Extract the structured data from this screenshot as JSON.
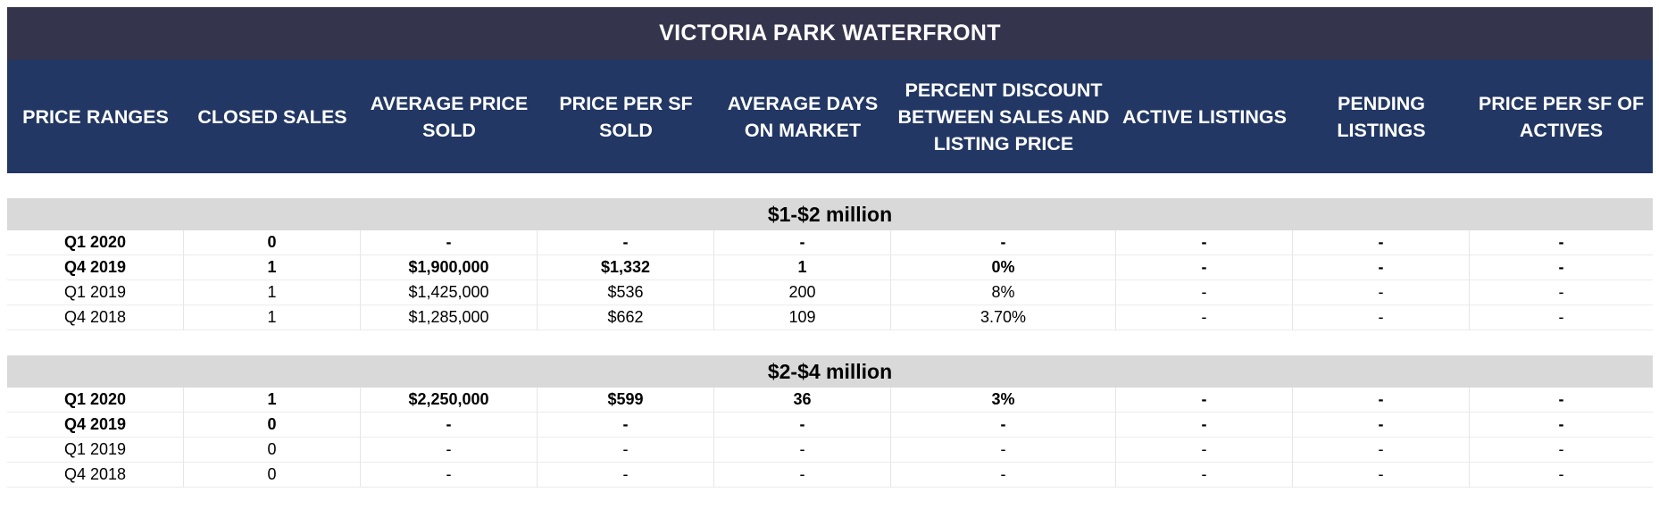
{
  "title": "VICTORIA PARK WATERFRONT",
  "columns": [
    "PRICE RANGES",
    "CLOSED SALES",
    "AVERAGE PRICE SOLD",
    "PRICE PER SF SOLD",
    "AVERAGE DAYS ON MARKET",
    "PERCENT DISCOUNT BETWEEN SALES AND LISTING PRICE",
    "ACTIVE LISTINGS",
    "PENDING LISTINGS",
    "PRICE PER SF OF ACTIVES"
  ],
  "colors": {
    "title_bg": "#35344d",
    "header_bg": "#223763",
    "section_bg": "#d9d9d9"
  },
  "sections": [
    {
      "label": "$1-$2 million",
      "rows": [
        {
          "bold": true,
          "cells": [
            "Q1 2020",
            "0",
            "-",
            "-",
            "-",
            "-",
            "-",
            "-",
            "-"
          ]
        },
        {
          "bold": true,
          "cells": [
            "Q4 2019",
            "1",
            "$1,900,000",
            "$1,332",
            "1",
            "0%",
            "-",
            "-",
            "-"
          ]
        },
        {
          "bold": false,
          "cells": [
            "Q1 2019",
            "1",
            "$1,425,000",
            "$536",
            "200",
            "8%",
            "-",
            "-",
            "-"
          ]
        },
        {
          "bold": false,
          "cells": [
            "Q4 2018",
            "1",
            "$1,285,000",
            "$662",
            "109",
            "3.70%",
            "-",
            "-",
            "-"
          ]
        }
      ]
    },
    {
      "label": "$2-$4 million",
      "rows": [
        {
          "bold": true,
          "cells": [
            "Q1 2020",
            "1",
            "$2,250,000",
            "$599",
            "36",
            "3%",
            "-",
            "-",
            "-"
          ]
        },
        {
          "bold": true,
          "cells": [
            "Q4 2019",
            "0",
            "-",
            "-",
            "-",
            "-",
            "-",
            "-",
            "-"
          ]
        },
        {
          "bold": false,
          "cells": [
            "Q1 2019",
            "0",
            "-",
            "-",
            "-",
            "-",
            "-",
            "-",
            "-"
          ]
        },
        {
          "bold": false,
          "cells": [
            "Q4 2018",
            "0",
            "-",
            "-",
            "-",
            "-",
            "-",
            "-",
            "-"
          ]
        }
      ]
    }
  ]
}
